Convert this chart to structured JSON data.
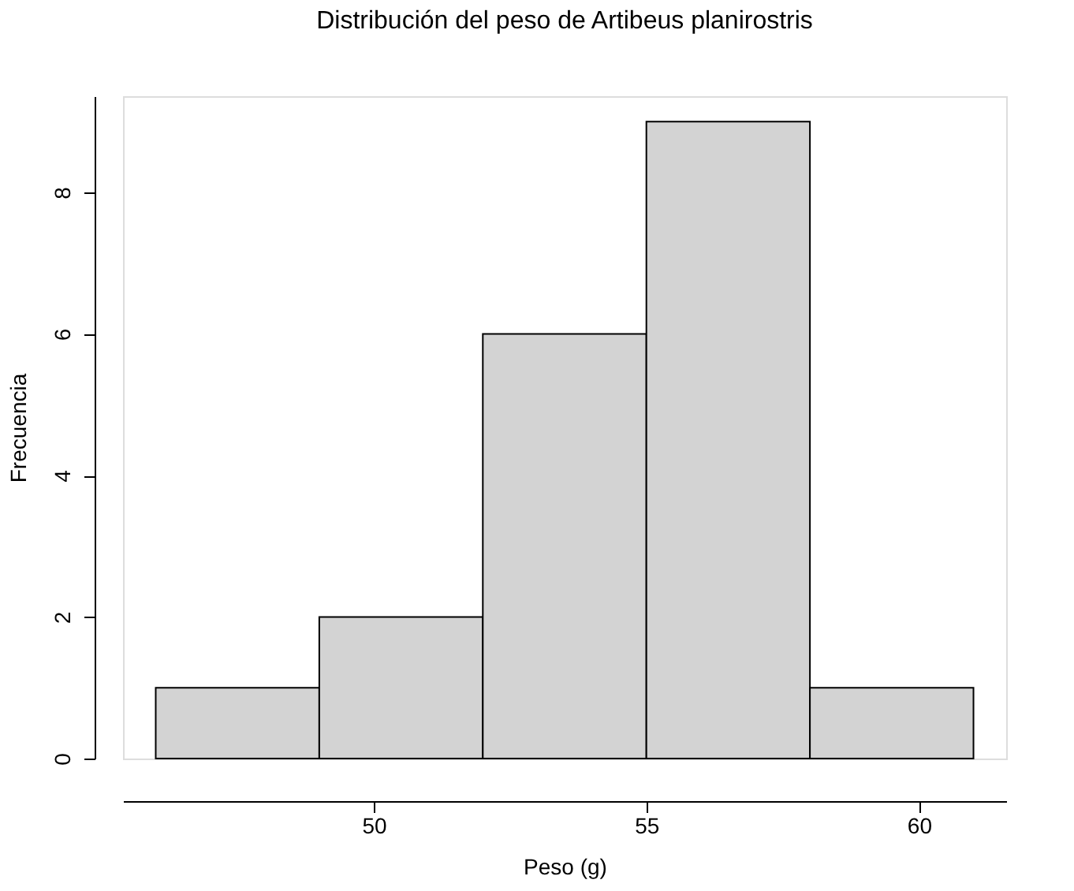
{
  "chart_data": {
    "type": "histogram",
    "title": "Distribución del peso de Artibeus planirostris",
    "xlabel": "Peso (g)",
    "ylabel": "Frecuencia",
    "bins": [
      46,
      49,
      52,
      55,
      58,
      61
    ],
    "values": [
      1,
      2,
      6,
      9,
      1
    ],
    "color": "#d3d3d3",
    "xlim": [
      45.4,
      61.6
    ],
    "xticks": [
      50,
      55,
      60
    ],
    "ylim": [
      0,
      9.36
    ],
    "yticks": [
      0,
      2,
      4,
      6,
      8
    ],
    "grid": false
  }
}
